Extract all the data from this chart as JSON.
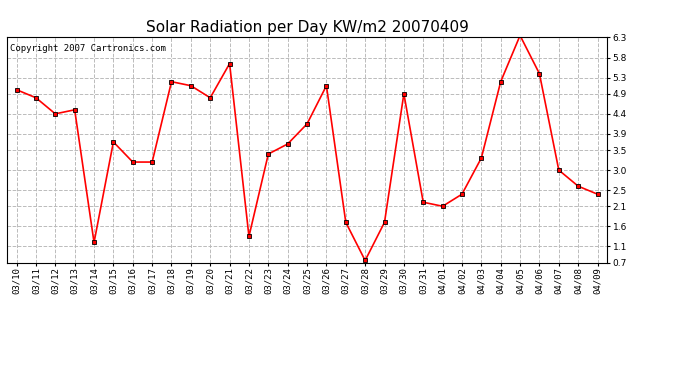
{
  "title": "Solar Radiation per Day KW/m2 20070409",
  "copyright": "Copyright 2007 Cartronics.com",
  "labels": [
    "03/10",
    "03/11",
    "03/12",
    "03/13",
    "03/14",
    "03/15",
    "03/16",
    "03/17",
    "03/18",
    "03/19",
    "03/20",
    "03/21",
    "03/22",
    "03/23",
    "03/24",
    "03/25",
    "03/26",
    "03/27",
    "03/28",
    "03/29",
    "03/30",
    "03/31",
    "04/01",
    "04/02",
    "04/03",
    "04/04",
    "04/05",
    "04/06",
    "04/07",
    "04/08",
    "04/09"
  ],
  "values": [
    5.0,
    4.8,
    4.4,
    4.5,
    1.2,
    3.7,
    3.2,
    3.2,
    5.2,
    5.1,
    4.8,
    5.65,
    1.35,
    3.4,
    3.65,
    4.15,
    5.1,
    1.7,
    0.75,
    1.7,
    4.9,
    2.2,
    2.1,
    2.4,
    3.3,
    5.2,
    6.35,
    5.4,
    3.0,
    2.6,
    2.4
  ],
  "line_color": "#ff0000",
  "marker_color": "#000000",
  "markersize": 3,
  "linewidth": 1.2,
  "ylim": [
    0.7,
    6.3
  ],
  "yticks": [
    0.7,
    1.1,
    1.6,
    2.1,
    2.5,
    3.0,
    3.5,
    3.9,
    4.4,
    4.9,
    5.3,
    5.8,
    6.3
  ],
  "grid_color": "#bbbbbb",
  "grid_linestyle": "--",
  "bg_color": "#ffffff",
  "title_fontsize": 11,
  "tick_fontsize": 6.5,
  "copyright_fontsize": 6.5
}
